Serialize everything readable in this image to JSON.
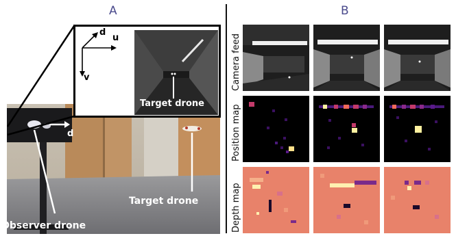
{
  "panels": {
    "a": "A",
    "b": "B"
  },
  "axes": {
    "d": "d",
    "u": "u",
    "v": "v",
    "d_world": "d"
  },
  "captions": {
    "target_inset": "Target drone",
    "target_photo": "Target drone",
    "observer": "Observer drone"
  },
  "rows": {
    "camera": "Camera feed",
    "position": "Position map",
    "depth": "Depth map"
  },
  "colors": {
    "panel_label": "#4a4a8c",
    "map_bg": "#000000",
    "depth_bg": "#e8826a"
  }
}
